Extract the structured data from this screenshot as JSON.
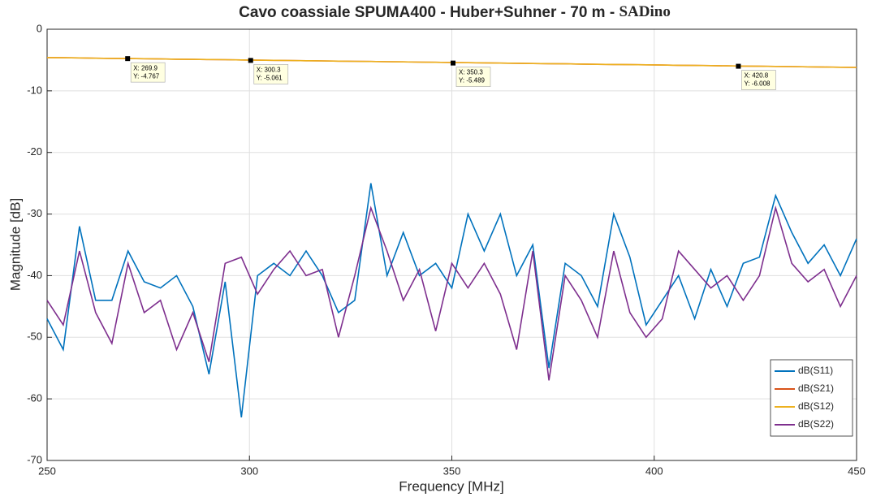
{
  "chart_data": {
    "type": "line",
    "title": "Cavo coassiale SPUMA400 - Huber+Suhner -  70 m - ",
    "title_suffix": "SADino",
    "x_label": "Frequency [MHz]",
    "y_label": "Magnitude [dB]",
    "x": [
      250,
      254,
      258,
      262,
      266,
      270,
      274,
      278,
      282,
      286,
      290,
      294,
      298,
      302,
      306,
      310,
      314,
      318,
      322,
      326,
      330,
      334,
      338,
      342,
      346,
      350,
      354,
      358,
      362,
      366,
      370,
      374,
      378,
      382,
      386,
      390,
      394,
      398,
      402,
      406,
      410,
      414,
      418,
      422,
      426,
      430,
      434,
      438,
      442,
      446,
      450
    ],
    "series": [
      {
        "name": "dB(S11)",
        "color": "#0072BD",
        "values": [
          -47,
          -52,
          -32,
          -44,
          -44,
          -36,
          -41,
          -42,
          -40,
          -45,
          -56,
          -41,
          -63,
          -40,
          -38,
          -40,
          -36,
          -40,
          -46,
          -44,
          -25,
          -40,
          -33,
          -40,
          -38,
          -42,
          -30,
          -36,
          -30,
          -40,
          -35,
          -55,
          -38,
          -40,
          -45,
          -30,
          -37,
          -48,
          -44,
          -40,
          -47,
          -39,
          -45,
          -38,
          -37,
          -27,
          -33,
          -38,
          -35,
          -40,
          -34
        ]
      },
      {
        "name": "dB(S21)",
        "color": "#D95319",
        "values": [
          -4.6,
          -4.63,
          -4.66,
          -4.7,
          -4.73,
          -4.76,
          -4.79,
          -4.82,
          -4.86,
          -4.89,
          -4.92,
          -4.95,
          -4.98,
          -5.02,
          -5.05,
          -5.08,
          -5.11,
          -5.14,
          -5.18,
          -5.21,
          -5.24,
          -5.27,
          -5.3,
          -5.34,
          -5.37,
          -5.4,
          -5.43,
          -5.46,
          -5.5,
          -5.53,
          -5.56,
          -5.59,
          -5.62,
          -5.66,
          -5.69,
          -5.72,
          -5.75,
          -5.78,
          -5.82,
          -5.85,
          -5.88,
          -5.91,
          -5.94,
          -5.98,
          -6.01,
          -6.04,
          -6.07,
          -6.1,
          -6.14,
          -6.17,
          -6.2
        ]
      },
      {
        "name": "dB(S12)",
        "color": "#EDB120",
        "values": [
          -4.6,
          -4.63,
          -4.66,
          -4.7,
          -4.73,
          -4.76,
          -4.79,
          -4.82,
          -4.86,
          -4.89,
          -4.92,
          -4.95,
          -4.98,
          -5.02,
          -5.05,
          -5.08,
          -5.11,
          -5.14,
          -5.18,
          -5.21,
          -5.24,
          -5.27,
          -5.3,
          -5.34,
          -5.37,
          -5.4,
          -5.43,
          -5.46,
          -5.5,
          -5.53,
          -5.56,
          -5.59,
          -5.62,
          -5.66,
          -5.69,
          -5.72,
          -5.75,
          -5.78,
          -5.82,
          -5.85,
          -5.88,
          -5.91,
          -5.94,
          -5.98,
          -6.01,
          -6.04,
          -6.07,
          -6.1,
          -6.14,
          -6.17,
          -6.2
        ]
      },
      {
        "name": "dB(S22)",
        "color": "#7E2F8E",
        "values": [
          -44,
          -48,
          -36,
          -46,
          -51,
          -38,
          -46,
          -44,
          -52,
          -46,
          -54,
          -38,
          -37,
          -43,
          -39,
          -36,
          -40,
          -39,
          -50,
          -40,
          -29,
          -36,
          -44,
          -39,
          -49,
          -38,
          -42,
          -38,
          -43,
          -52,
          -36,
          -57,
          -40,
          -44,
          -50,
          -36,
          -46,
          -50,
          -47,
          -36,
          -39,
          -42,
          -40,
          -44,
          -40,
          -29,
          -38,
          -41,
          -39,
          -45,
          -40
        ]
      }
    ],
    "datatips": [
      {
        "x": 269.9,
        "y": -4.767,
        "x_label": "X: 269.9",
        "y_label": "Y: -4.767"
      },
      {
        "x": 300.3,
        "y": -5.061,
        "x_label": "X: 300.3",
        "y_label": "Y: -5.061"
      },
      {
        "x": 350.3,
        "y": -5.489,
        "x_label": "X: 350.3",
        "y_label": "Y: -5.489"
      },
      {
        "x": 420.8,
        "y": -6.008,
        "x_label": "X: 420.8",
        "y_label": "Y: -6.008"
      }
    ],
    "xlim": [
      250,
      450
    ],
    "ylim": [
      -70,
      0
    ],
    "xticks": [
      250,
      300,
      350,
      400,
      450
    ],
    "yticks": [
      -70,
      -60,
      -50,
      -40,
      -30,
      -20,
      -10,
      0
    ],
    "grid": true,
    "legend": "southeast"
  }
}
